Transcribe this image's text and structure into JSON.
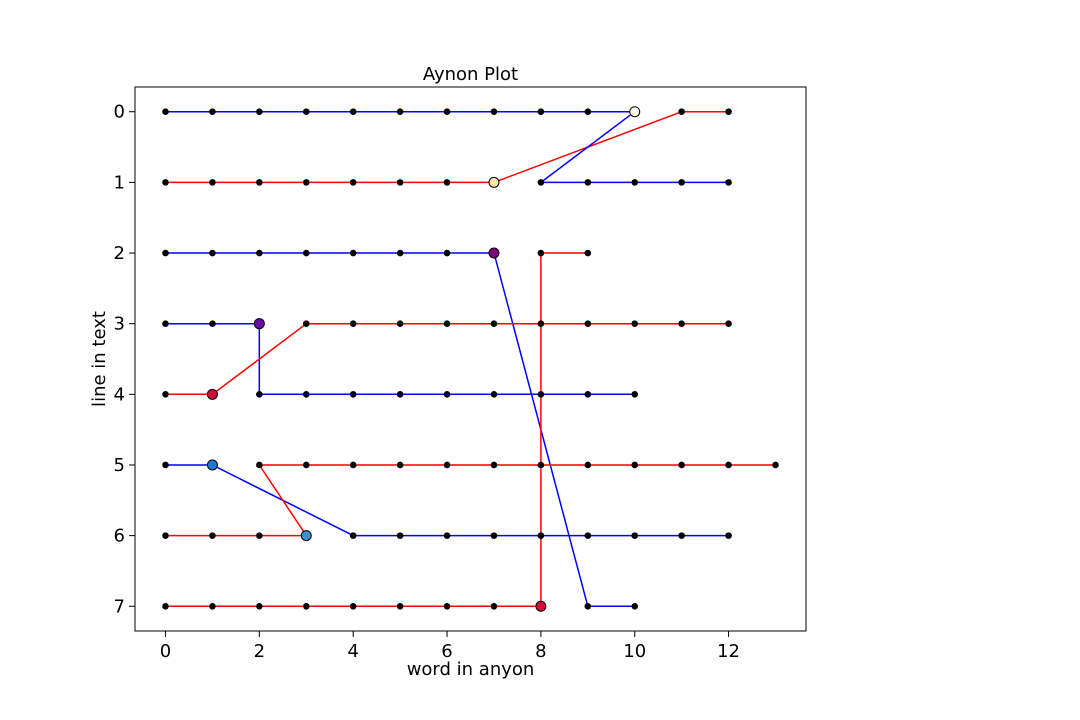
{
  "chart_data": {
    "type": "line",
    "title": "Aynon Plot",
    "xlabel": "word in anyon",
    "ylabel": "line in text",
    "xlim": [
      -0.65,
      13.65
    ],
    "ylim": [
      7.35,
      -0.35
    ],
    "y_inverted": true,
    "xticks": [
      0,
      2,
      4,
      6,
      8,
      10,
      12
    ],
    "yticks": [
      0,
      1,
      2,
      3,
      4,
      5,
      6,
      7
    ],
    "grid": false,
    "colors": {
      "red": "#ff0000",
      "blue": "#0000ff",
      "dot": "#000000"
    },
    "series": [
      {
        "color": "blue",
        "points": [
          [
            0,
            0
          ],
          [
            1,
            0
          ],
          [
            2,
            0
          ],
          [
            3,
            0
          ],
          [
            4,
            0
          ],
          [
            5,
            0
          ],
          [
            6,
            0
          ],
          [
            7,
            0
          ],
          [
            8,
            0
          ],
          [
            9,
            0
          ],
          [
            10,
            0
          ]
        ]
      },
      {
        "color": "red",
        "points": [
          [
            0,
            1
          ],
          [
            1,
            1
          ],
          [
            2,
            1
          ],
          [
            3,
            1
          ],
          [
            4,
            1
          ],
          [
            5,
            1
          ],
          [
            6,
            1
          ],
          [
            7,
            1
          ]
        ]
      },
      {
        "color": "red",
        "points": [
          [
            7,
            1
          ],
          [
            11,
            0
          ],
          [
            12,
            0
          ]
        ]
      },
      {
        "color": "blue",
        "points": [
          [
            10,
            0
          ],
          [
            8,
            1
          ],
          [
            9,
            1
          ],
          [
            10,
            1
          ],
          [
            11,
            1
          ],
          [
            12,
            1
          ]
        ]
      },
      {
        "color": "blue",
        "points": [
          [
            0,
            2
          ],
          [
            1,
            2
          ],
          [
            2,
            2
          ],
          [
            3,
            2
          ],
          [
            4,
            2
          ],
          [
            5,
            2
          ],
          [
            6,
            2
          ],
          [
            7,
            2
          ]
        ]
      },
      {
        "color": "blue",
        "points": [
          [
            7,
            2
          ],
          [
            9,
            7
          ],
          [
            10,
            7
          ]
        ]
      },
      {
        "color": "red",
        "points": [
          [
            8,
            7
          ],
          [
            8,
            2
          ],
          [
            9,
            2
          ]
        ]
      },
      {
        "color": "blue",
        "points": [
          [
            0,
            3
          ],
          [
            1,
            3
          ],
          [
            2,
            3
          ],
          [
            2,
            4
          ],
          [
            3,
            4
          ],
          [
            4,
            4
          ],
          [
            5,
            4
          ],
          [
            6,
            4
          ],
          [
            7,
            4
          ],
          [
            8,
            4
          ],
          [
            9,
            4
          ],
          [
            10,
            4
          ]
        ]
      },
      {
        "color": "red",
        "points": [
          [
            0,
            4
          ],
          [
            1,
            4
          ],
          [
            3,
            3
          ],
          [
            4,
            3
          ],
          [
            5,
            3
          ],
          [
            6,
            3
          ],
          [
            7,
            3
          ],
          [
            8,
            3
          ],
          [
            9,
            3
          ],
          [
            10,
            3
          ],
          [
            11,
            3
          ],
          [
            12,
            3
          ]
        ]
      },
      {
        "color": "blue",
        "points": [
          [
            0,
            5
          ],
          [
            1,
            5
          ],
          [
            4,
            6
          ],
          [
            5,
            6
          ],
          [
            6,
            6
          ],
          [
            7,
            6
          ],
          [
            8,
            6
          ],
          [
            9,
            6
          ],
          [
            10,
            6
          ],
          [
            11,
            6
          ],
          [
            12,
            6
          ]
        ]
      },
      {
        "color": "red",
        "points": [
          [
            0,
            6
          ],
          [
            1,
            6
          ],
          [
            2,
            6
          ],
          [
            3,
            6
          ],
          [
            2,
            5
          ],
          [
            3,
            5
          ],
          [
            4,
            5
          ],
          [
            5,
            5
          ],
          [
            6,
            5
          ],
          [
            7,
            5
          ],
          [
            8,
            5
          ],
          [
            9,
            5
          ],
          [
            10,
            5
          ],
          [
            11,
            5
          ],
          [
            12,
            5
          ],
          [
            13,
            5
          ]
        ]
      },
      {
        "color": "red",
        "points": [
          [
            0,
            7
          ],
          [
            1,
            7
          ],
          [
            2,
            7
          ],
          [
            3,
            7
          ],
          [
            4,
            7
          ],
          [
            5,
            7
          ],
          [
            6,
            7
          ],
          [
            7,
            7
          ],
          [
            8,
            7
          ]
        ]
      }
    ],
    "small_points": [
      [
        0,
        0
      ],
      [
        1,
        0
      ],
      [
        2,
        0
      ],
      [
        3,
        0
      ],
      [
        4,
        0
      ],
      [
        5,
        0
      ],
      [
        6,
        0
      ],
      [
        7,
        0
      ],
      [
        8,
        0
      ],
      [
        9,
        0
      ],
      [
        11,
        0
      ],
      [
        12,
        0
      ],
      [
        0,
        1
      ],
      [
        1,
        1
      ],
      [
        2,
        1
      ],
      [
        3,
        1
      ],
      [
        4,
        1
      ],
      [
        5,
        1
      ],
      [
        6,
        1
      ],
      [
        8,
        1
      ],
      [
        9,
        1
      ],
      [
        10,
        1
      ],
      [
        11,
        1
      ],
      [
        12,
        1
      ],
      [
        0,
        2
      ],
      [
        1,
        2
      ],
      [
        2,
        2
      ],
      [
        3,
        2
      ],
      [
        4,
        2
      ],
      [
        5,
        2
      ],
      [
        6,
        2
      ],
      [
        8,
        2
      ],
      [
        9,
        2
      ],
      [
        0,
        3
      ],
      [
        1,
        3
      ],
      [
        3,
        3
      ],
      [
        4,
        3
      ],
      [
        5,
        3
      ],
      [
        6,
        3
      ],
      [
        7,
        3
      ],
      [
        8,
        3
      ],
      [
        9,
        3
      ],
      [
        10,
        3
      ],
      [
        11,
        3
      ],
      [
        12,
        3
      ],
      [
        0,
        4
      ],
      [
        2,
        4
      ],
      [
        3,
        4
      ],
      [
        4,
        4
      ],
      [
        5,
        4
      ],
      [
        6,
        4
      ],
      [
        7,
        4
      ],
      [
        8,
        4
      ],
      [
        9,
        4
      ],
      [
        10,
        4
      ],
      [
        0,
        5
      ],
      [
        2,
        5
      ],
      [
        3,
        5
      ],
      [
        4,
        5
      ],
      [
        5,
        5
      ],
      [
        6,
        5
      ],
      [
        7,
        5
      ],
      [
        8,
        5
      ],
      [
        9,
        5
      ],
      [
        10,
        5
      ],
      [
        11,
        5
      ],
      [
        12,
        5
      ],
      [
        13,
        5
      ],
      [
        0,
        6
      ],
      [
        1,
        6
      ],
      [
        2,
        6
      ],
      [
        4,
        6
      ],
      [
        5,
        6
      ],
      [
        6,
        6
      ],
      [
        7,
        6
      ],
      [
        8,
        6
      ],
      [
        9,
        6
      ],
      [
        10,
        6
      ],
      [
        11,
        6
      ],
      [
        12,
        6
      ],
      [
        0,
        7
      ],
      [
        1,
        7
      ],
      [
        2,
        7
      ],
      [
        3,
        7
      ],
      [
        4,
        7
      ],
      [
        5,
        7
      ],
      [
        6,
        7
      ],
      [
        7,
        7
      ],
      [
        9,
        7
      ],
      [
        10,
        7
      ]
    ],
    "big_points": [
      {
        "x": 10,
        "y": 0,
        "fill": "#fffbe6"
      },
      {
        "x": 7,
        "y": 1,
        "fill": "#fde8b0"
      },
      {
        "x": 7,
        "y": 2,
        "fill": "#800080"
      },
      {
        "x": 2,
        "y": 3,
        "fill": "#6a0dad"
      },
      {
        "x": 1,
        "y": 4,
        "fill": "#d0103a"
      },
      {
        "x": 1,
        "y": 5,
        "fill": "#1e78d7"
      },
      {
        "x": 3,
        "y": 6,
        "fill": "#3a8fd8"
      },
      {
        "x": 8,
        "y": 7,
        "fill": "#d0103a"
      }
    ]
  }
}
